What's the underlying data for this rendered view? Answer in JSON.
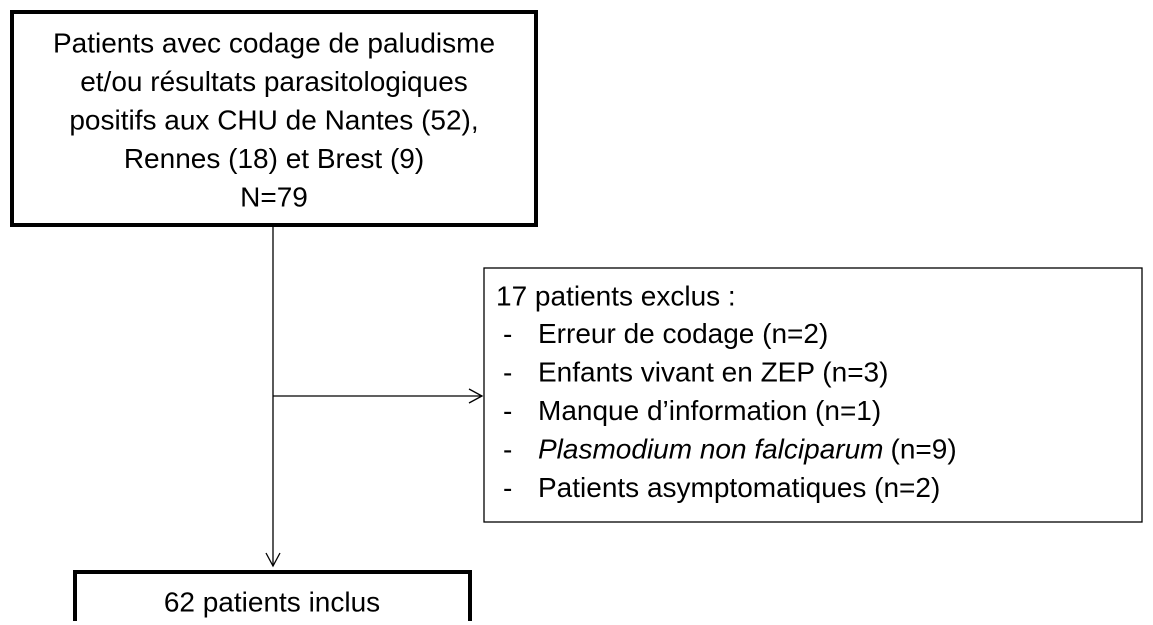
{
  "top_box": {
    "lines": [
      "Patients avec codage de paludisme",
      "et/ou résultats parasitologiques",
      "positifs aux CHU de Nantes (52),",
      "Rennes (18) et Brest (9)",
      "N=79"
    ]
  },
  "exclusion": {
    "title": "17 patients exclus :",
    "bullet": "-",
    "items": [
      [
        "Erreur de codage (n=2)"
      ],
      [
        "Enfants vivant en ZEP (n=3)"
      ],
      [
        "Manque d’information (n=1)"
      ],
      [
        "Plasmodium non falciparum",
        "(n=9)"
      ],
      [
        "Patients asymptomatiques (n=2)"
      ]
    ]
  },
  "bottom_box": {
    "label": "62 patients inclus"
  }
}
